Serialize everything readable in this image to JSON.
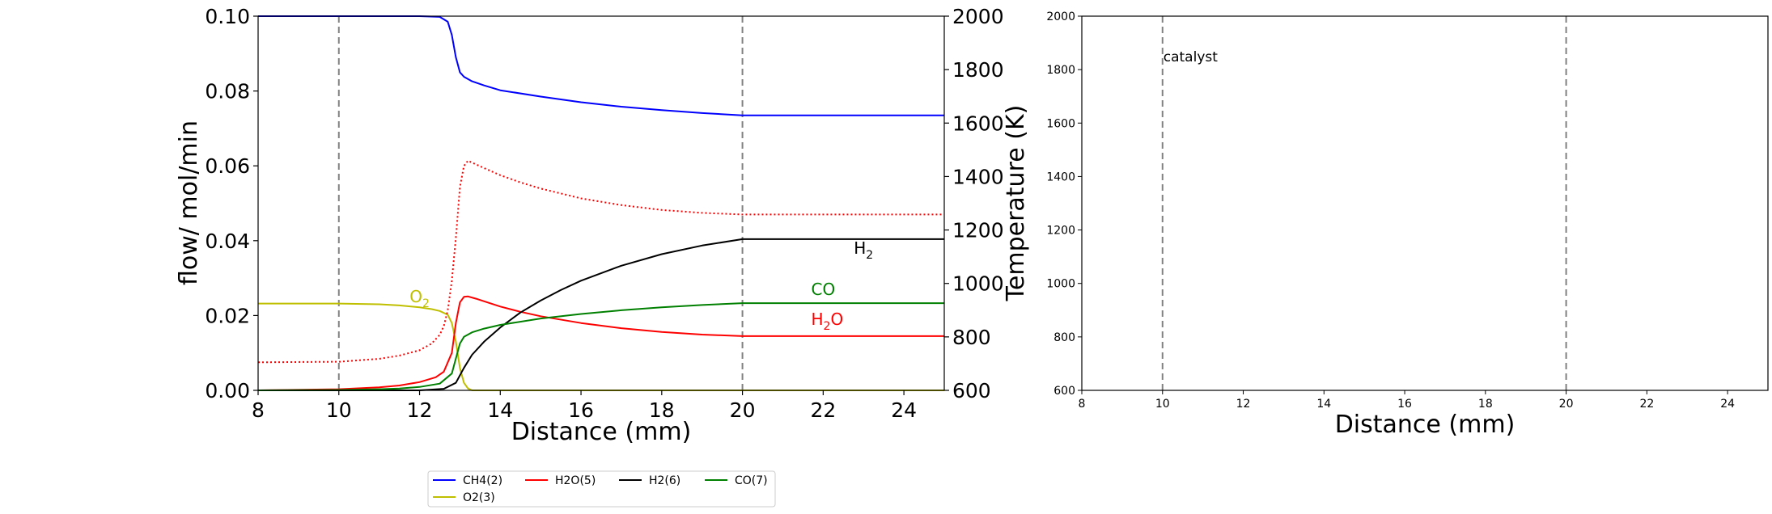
{
  "chart_data": [
    {
      "type": "line",
      "xlabel": "Distance (mm)",
      "ylabel": "flow/ mol/min",
      "y2label": "Temperature (K)",
      "xlim": [
        8,
        25
      ],
      "ylim": [
        0,
        0.1
      ],
      "y2lim": [
        600,
        2000
      ],
      "xticks": [
        "8",
        "10",
        "12",
        "14",
        "16",
        "18",
        "20",
        "22",
        "24"
      ],
      "yticks": [
        "0.00",
        "0.02",
        "0.04",
        "0.06",
        "0.08",
        "0.10"
      ],
      "y2ticks": [
        "600",
        "800",
        "1000",
        "1200",
        "1400",
        "1600",
        "1800",
        "2000"
      ],
      "vlines": [
        10,
        20
      ],
      "series": [
        {
          "name": "CH4(2)",
          "color": "#0000ff",
          "style": "solid",
          "x": [
            8,
            12,
            12.5,
            12.7,
            12.8,
            12.9,
            13.0,
            13.1,
            13.3,
            13.6,
            14,
            15,
            16,
            17,
            18,
            19,
            20,
            25
          ],
          "y": [
            0.1,
            0.1,
            0.0998,
            0.0985,
            0.095,
            0.089,
            0.085,
            0.0838,
            0.0826,
            0.0815,
            0.0802,
            0.0785,
            0.077,
            0.0758,
            0.0749,
            0.0741,
            0.0735,
            0.0735
          ]
        },
        {
          "name": "O2(3)",
          "color": "#bfbf00",
          "style": "solid",
          "x": [
            8,
            10,
            11,
            11.5,
            12,
            12.3,
            12.5,
            12.7,
            12.8,
            12.9,
            13.0,
            13.1,
            13.2,
            13.3,
            14,
            25
          ],
          "y": [
            0.0232,
            0.0232,
            0.023,
            0.0227,
            0.0222,
            0.0217,
            0.0212,
            0.0202,
            0.018,
            0.013,
            0.006,
            0.002,
            0.0005,
            0.0,
            0.0,
            0.0
          ]
        },
        {
          "name": "H2O(5)",
          "color": "#ff0000",
          "style": "solid",
          "x": [
            8,
            10,
            11,
            11.5,
            12,
            12.4,
            12.6,
            12.8,
            12.9,
            13.0,
            13.1,
            13.2,
            13.4,
            13.6,
            14,
            14.5,
            15,
            16,
            17,
            18,
            19,
            20,
            25
          ],
          "y": [
            0.0,
            0.0003,
            0.0008,
            0.0013,
            0.0022,
            0.0035,
            0.005,
            0.01,
            0.018,
            0.0235,
            0.025,
            0.0251,
            0.0245,
            0.0238,
            0.0224,
            0.021,
            0.0198,
            0.018,
            0.0166,
            0.0156,
            0.0149,
            0.0145,
            0.0145
          ]
        },
        {
          "name": "Temperature",
          "color": "#ff0000",
          "style": "dotted",
          "axis": "y2",
          "x": [
            8,
            10,
            11,
            11.5,
            12,
            12.3,
            12.5,
            12.6,
            12.7,
            12.8,
            12.9,
            13.0,
            13.1,
            13.2,
            13.4,
            13.7,
            14,
            14.5,
            15,
            16,
            17,
            18,
            19,
            20,
            25
          ],
          "y": [
            705,
            707,
            718,
            730,
            750,
            775,
            808,
            840,
            900,
            1010,
            1170,
            1360,
            1440,
            1459,
            1445,
            1425,
            1405,
            1378,
            1355,
            1318,
            1293,
            1275,
            1264,
            1258,
            1258
          ]
        },
        {
          "name": "H2(6)",
          "color": "#000000",
          "style": "solid",
          "x": [
            8,
            12,
            12.6,
            12.9,
            13.1,
            13.3,
            13.6,
            14,
            14.5,
            15,
            15.5,
            16,
            17,
            18,
            19,
            20,
            25
          ],
          "y": [
            0.0,
            0.0,
            0.0004,
            0.002,
            0.006,
            0.0095,
            0.013,
            0.0168,
            0.0208,
            0.024,
            0.0268,
            0.0293,
            0.0333,
            0.0364,
            0.0387,
            0.0404,
            0.0404
          ]
        },
        {
          "name": "CO(7)",
          "color": "#008000",
          "style": "solid",
          "x": [
            8,
            10,
            11,
            11.5,
            12,
            12.5,
            12.8,
            12.9,
            13.0,
            13.1,
            13.3,
            13.6,
            14,
            15,
            16,
            17,
            18,
            19,
            20,
            25
          ],
          "y": [
            0.0,
            0.0001,
            0.0003,
            0.0005,
            0.0009,
            0.0018,
            0.0045,
            0.0085,
            0.0125,
            0.0143,
            0.0155,
            0.0165,
            0.0175,
            0.0192,
            0.0204,
            0.0214,
            0.0222,
            0.0228,
            0.0233,
            0.0233
          ]
        }
      ],
      "annotations": [
        {
          "text": "O2",
          "base": "O",
          "sub": "2",
          "x": 12.0,
          "y": 0.0235,
          "color": "#bfbf00"
        },
        {
          "text": "H2",
          "base": "H",
          "sub": "2",
          "x": 23.0,
          "y": 0.0365,
          "color": "#000000"
        },
        {
          "text": "CO",
          "base": "CO",
          "sub": "",
          "x": 22.0,
          "y": 0.0255,
          "color": "#008000"
        },
        {
          "text": "H2O",
          "base": "H",
          "sub": "2",
          "tail": "O",
          "x": 22.1,
          "y": 0.0175,
          "color": "#ff0000"
        }
      ],
      "legend": {
        "placement": "below",
        "entries": [
          {
            "label": "CH4(2)",
            "color": "#0000ff"
          },
          {
            "label": "H2O(5)",
            "color": "#ff0000"
          },
          {
            "label": "H2(6)",
            "color": "#000000"
          },
          {
            "label": "CO(7)",
            "color": "#008000"
          },
          {
            "label": "O2(3)",
            "color": "#bfbf00"
          }
        ]
      }
    },
    {
      "type": "line",
      "xlabel": "Distance (mm)",
      "xlim": [
        8,
        25
      ],
      "ylim": [
        600,
        2000
      ],
      "xticks": [
        "8",
        "10",
        "12",
        "14",
        "16",
        "18",
        "20",
        "22",
        "24"
      ],
      "yticks": [
        "600",
        "800",
        "1000",
        "1200",
        "1400",
        "1600",
        "1800",
        "2000"
      ],
      "vlines": [
        10,
        20
      ],
      "annotations": [
        {
          "text": "catalyst",
          "x": 10.0,
          "y": 1830
        }
      ],
      "series": []
    }
  ]
}
